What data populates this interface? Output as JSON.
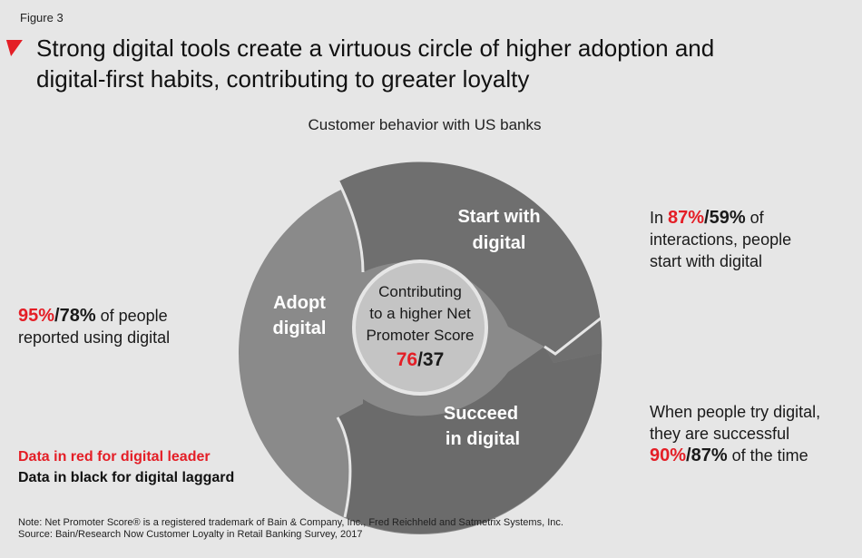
{
  "figure_label": "Figure 3",
  "title_line1": "Strong digital tools create a virtuous circle of higher adoption and",
  "title_line2": "digital-first habits, contributing to greater loyalty",
  "subtitle": "Customer behavior with US banks",
  "cycle": {
    "start_line1": "Start with",
    "start_line2": "digital",
    "adopt_line1": "Adopt",
    "adopt_line2": "digital",
    "succeed_line1": "Succeed",
    "succeed_line2": "in digital",
    "center_line1": "Contributing",
    "center_line2": "to a higher Net",
    "center_line3": "Promoter Score",
    "center_leader": "76",
    "center_sep": "/",
    "center_laggard": "37"
  },
  "stats": {
    "start": {
      "prefix": "In ",
      "leader": "87%",
      "sep": "/",
      "laggard": "59%",
      "suffix": " of",
      "line2": "interactions, people",
      "line3": "start with digital"
    },
    "adopt": {
      "leader": "95%",
      "sep": "/",
      "laggard": "78%",
      "suffix": " of people",
      "line2": "reported using digital"
    },
    "succeed": {
      "line1": "When people try digital,",
      "line2": "they are successful",
      "leader": "90%",
      "sep": "/",
      "laggard": "87%",
      "suffix": " of the time"
    }
  },
  "legend": {
    "leader": "Data in red for digital leader",
    "laggard": "Data in black for digital laggard"
  },
  "note_line1": "Note: Net Promoter Score® is a registered trademark of Bain & Company, Inc., Fred Reichheld and Satmetrix Systems, Inc.",
  "note_line2": "Source: Bain/Research Now Customer Loyalty in Retail Banking Survey, 2017",
  "colors": {
    "leader": "#e41e26",
    "laggard": "#111111",
    "segment_dark": "#6d6d6d",
    "segment_mid": "#8a8a8a",
    "center": "#c4c4c4"
  }
}
